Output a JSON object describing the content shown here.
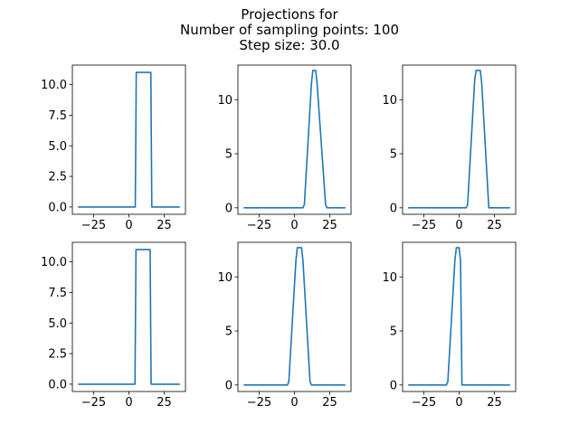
{
  "figure": {
    "title_lines": [
      "Projections for",
      "Number of sampling points: 100",
      "Step size: 30.0"
    ]
  },
  "colors": {
    "line": "#1f77b4",
    "axes": "#000000"
  },
  "chart_data": [
    {
      "type": "line",
      "xlim": [
        -40,
        40
      ],
      "ylim": [
        -0.6,
        11.6
      ],
      "xticks": [
        -25,
        0,
        25
      ],
      "xtick_labels": [
        "−25",
        "0",
        "25"
      ],
      "yticks": [
        0,
        2.5,
        5,
        7.5,
        10
      ],
      "ytick_labels": [
        "0.0",
        "2.5",
        "5.0",
        "7.5",
        "10.0"
      ],
      "x": [
        -36,
        4.5,
        5.2,
        15.5,
        16.2,
        36
      ],
      "y": [
        0,
        0,
        11,
        11,
        0,
        0
      ]
    },
    {
      "type": "line",
      "xlim": [
        -40,
        40
      ],
      "ylim": [
        -0.6,
        13.2
      ],
      "xticks": [
        -25,
        0,
        25
      ],
      "xtick_labels": [
        "−25",
        "0",
        "25"
      ],
      "yticks": [
        0,
        5,
        10
      ],
      "ytick_labels": [
        "0",
        "5",
        "10"
      ],
      "x": [
        -36,
        6,
        7,
        12,
        13,
        15,
        16,
        22,
        23,
        36
      ],
      "y": [
        0,
        0,
        0.3,
        11.5,
        12.7,
        12.7,
        11.5,
        0.3,
        0,
        0
      ]
    },
    {
      "type": "line",
      "xlim": [
        -40,
        40
      ],
      "ylim": [
        -0.6,
        13.2
      ],
      "xticks": [
        -25,
        0,
        25
      ],
      "xtick_labels": [
        "−25",
        "0",
        "25"
      ],
      "yticks": [
        0,
        5,
        10
      ],
      "ytick_labels": [
        "0",
        "5",
        "10"
      ],
      "x": [
        -36,
        5,
        6,
        11,
        12,
        15,
        16,
        21,
        36
      ],
      "y": [
        0,
        0,
        0.3,
        11.8,
        12.7,
        12.7,
        11.5,
        0,
        0
      ]
    },
    {
      "type": "line",
      "xlim": [
        -40,
        40
      ],
      "ylim": [
        -0.6,
        11.6
      ],
      "xticks": [
        -25,
        0,
        25
      ],
      "xtick_labels": [
        "−25",
        "0",
        "25"
      ],
      "yticks": [
        0,
        2.5,
        5,
        7.5,
        10
      ],
      "ytick_labels": [
        "0.0",
        "2.5",
        "5.0",
        "7.5",
        "10.0"
      ],
      "x": [
        -36,
        4.3,
        5.0,
        15.0,
        15.7,
        36
      ],
      "y": [
        0,
        0,
        11,
        11,
        0,
        0
      ]
    },
    {
      "type": "line",
      "xlim": [
        -40,
        40
      ],
      "ylim": [
        -0.6,
        13.2
      ],
      "xticks": [
        -25,
        0,
        25
      ],
      "xtick_labels": [
        "−25",
        "0",
        "25"
      ],
      "yticks": [
        0,
        5,
        10
      ],
      "ytick_labels": [
        "0",
        "5",
        "10"
      ],
      "x": [
        -36,
        -5,
        -4,
        1,
        2,
        5,
        6,
        11,
        12,
        36
      ],
      "y": [
        0,
        0,
        0.3,
        11.5,
        12.7,
        12.7,
        11.5,
        0.3,
        0,
        0
      ]
    },
    {
      "type": "line",
      "xlim": [
        -40,
        40
      ],
      "ylim": [
        -0.6,
        13.2
      ],
      "xticks": [
        -25,
        0,
        25
      ],
      "xtick_labels": [
        "−25",
        "0",
        "25"
      ],
      "yticks": [
        0,
        5,
        10
      ],
      "ytick_labels": [
        "0",
        "5",
        "10"
      ],
      "x": [
        -36,
        -9,
        -8,
        -3,
        -2,
        0,
        1,
        2,
        36
      ],
      "y": [
        0,
        0,
        0.3,
        11.5,
        12.7,
        12.7,
        11.5,
        0,
        0
      ]
    }
  ]
}
